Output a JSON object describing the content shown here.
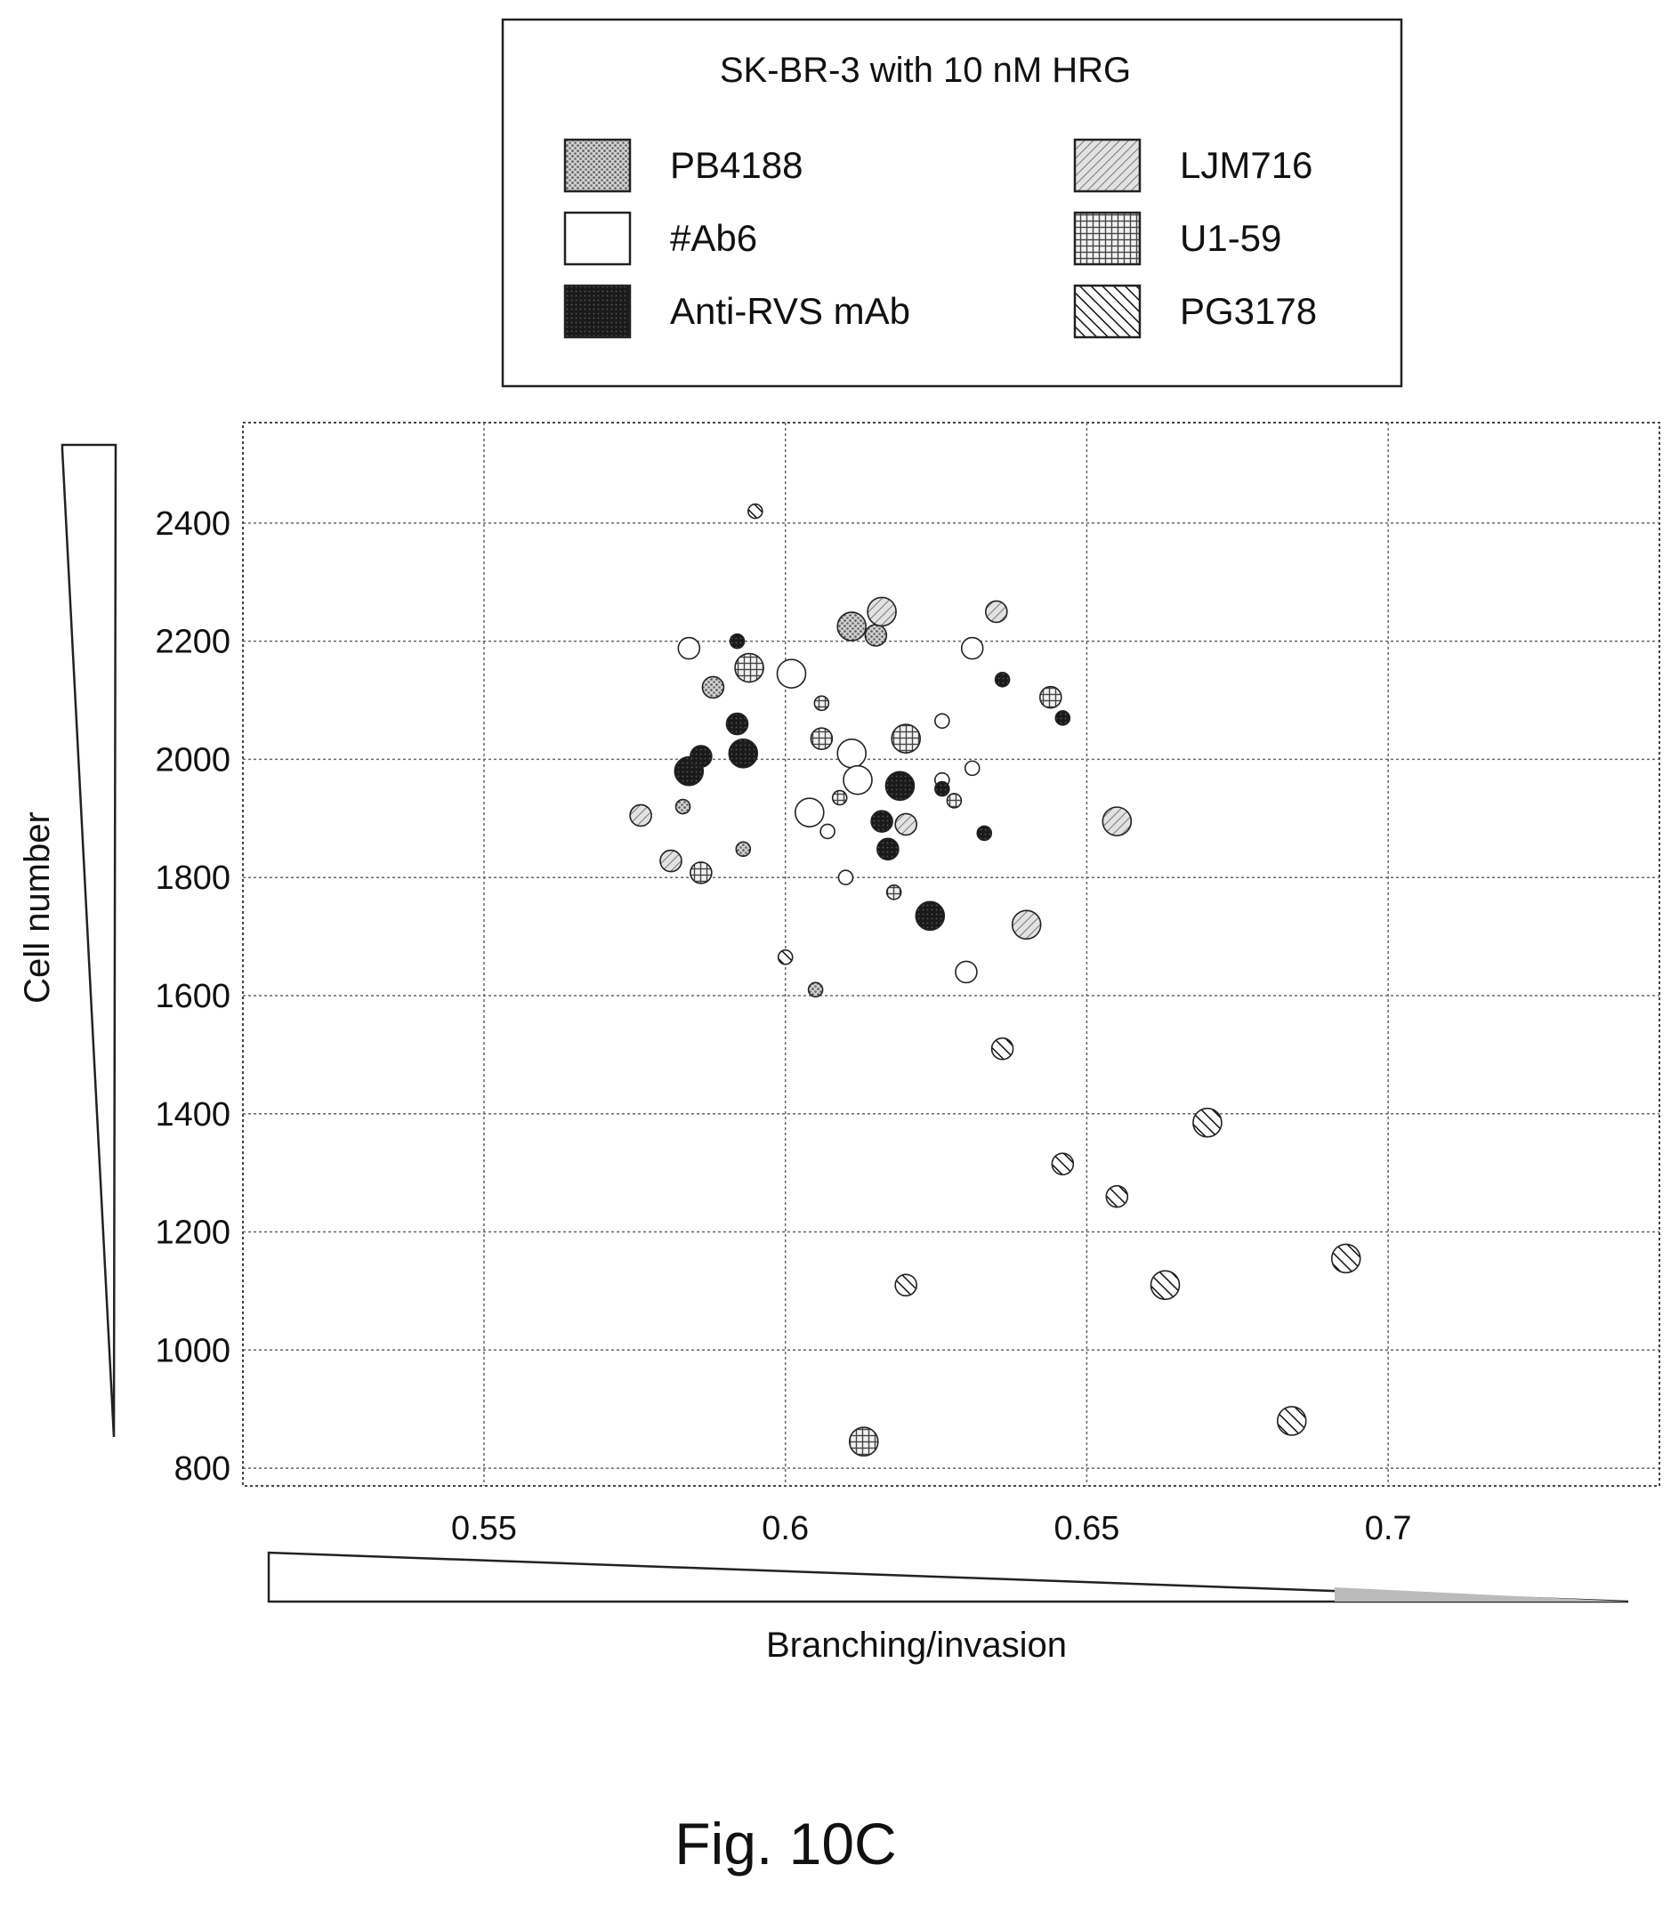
{
  "figure_label": "Fig. 10C",
  "chart_data": {
    "type": "scatter",
    "xlabel": "Branching/invasion",
    "ylabel": "Cell number",
    "xlim": [
      0.51,
      0.745
    ],
    "ylim": [
      770,
      2570
    ],
    "xticks": [
      0.55,
      0.6,
      0.65,
      0.7
    ],
    "yticks": [
      800,
      1000,
      1200,
      1400,
      1600,
      1800,
      2000,
      2200,
      2400
    ],
    "grid": true,
    "legend": {
      "title": "SK-BR-3 with 10 nM HRG",
      "placement": "top-center",
      "entries": [
        {
          "name": "PB4188",
          "pattern": "dots"
        },
        {
          "name": "#Ab6",
          "pattern": "open"
        },
        {
          "name": "Anti-RVS mAb",
          "pattern": "dark"
        },
        {
          "name": "LJM716",
          "pattern": "diagonal"
        },
        {
          "name": "U1-59",
          "pattern": "crosshatch"
        },
        {
          "name": "PG3178",
          "pattern": "back-diagonal"
        }
      ]
    },
    "series": [
      {
        "name": "PB4188",
        "pattern": "dots",
        "points": [
          {
            "x": 0.611,
            "y": 2225,
            "size": 3
          },
          {
            "x": 0.615,
            "y": 2210,
            "size": 2
          },
          {
            "x": 0.583,
            "y": 1920,
            "size": 1
          },
          {
            "x": 0.605,
            "y": 1610,
            "size": 1
          },
          {
            "x": 0.593,
            "y": 1848,
            "size": 1
          },
          {
            "x": 0.588,
            "y": 2122,
            "size": 2
          }
        ]
      },
      {
        "name": "#Ab6",
        "pattern": "open",
        "points": [
          {
            "x": 0.601,
            "y": 2145,
            "size": 3
          },
          {
            "x": 0.584,
            "y": 2188,
            "size": 2
          },
          {
            "x": 0.611,
            "y": 2010,
            "size": 3
          },
          {
            "x": 0.612,
            "y": 1965,
            "size": 3
          },
          {
            "x": 0.604,
            "y": 1910,
            "size": 3
          },
          {
            "x": 0.631,
            "y": 2188,
            "size": 2
          },
          {
            "x": 0.61,
            "y": 1800,
            "size": 1
          },
          {
            "x": 0.63,
            "y": 1640,
            "size": 2
          },
          {
            "x": 0.626,
            "y": 1965,
            "size": 1
          },
          {
            "x": 0.626,
            "y": 2065,
            "size": 1
          },
          {
            "x": 0.631,
            "y": 1985,
            "size": 1
          },
          {
            "x": 0.607,
            "y": 1878,
            "size": 1
          }
        ]
      },
      {
        "name": "Anti-RVS mAb",
        "pattern": "dark",
        "points": [
          {
            "x": 0.584,
            "y": 1980,
            "size": 3
          },
          {
            "x": 0.586,
            "y": 2005,
            "size": 2
          },
          {
            "x": 0.593,
            "y": 2010,
            "size": 3
          },
          {
            "x": 0.592,
            "y": 2060,
            "size": 2
          },
          {
            "x": 0.592,
            "y": 2200,
            "size": 1
          },
          {
            "x": 0.619,
            "y": 1955,
            "size": 3
          },
          {
            "x": 0.616,
            "y": 1895,
            "size": 2
          },
          {
            "x": 0.617,
            "y": 1848,
            "size": 2
          },
          {
            "x": 0.624,
            "y": 1735,
            "size": 3
          },
          {
            "x": 0.626,
            "y": 1950,
            "size": 1
          },
          {
            "x": 0.633,
            "y": 1875,
            "size": 1
          },
          {
            "x": 0.636,
            "y": 2135,
            "size": 1
          },
          {
            "x": 0.646,
            "y": 2070,
            "size": 1
          }
        ]
      },
      {
        "name": "LJM716",
        "pattern": "diagonal",
        "points": [
          {
            "x": 0.576,
            "y": 1905,
            "size": 2
          },
          {
            "x": 0.581,
            "y": 1828,
            "size": 2
          },
          {
            "x": 0.616,
            "y": 2250,
            "size": 3
          },
          {
            "x": 0.635,
            "y": 2250,
            "size": 2
          },
          {
            "x": 0.62,
            "y": 1890,
            "size": 2
          },
          {
            "x": 0.64,
            "y": 1720,
            "size": 3
          },
          {
            "x": 0.655,
            "y": 1895,
            "size": 3
          }
        ]
      },
      {
        "name": "U1-59",
        "pattern": "crosshatch",
        "points": [
          {
            "x": 0.594,
            "y": 2155,
            "size": 3
          },
          {
            "x": 0.586,
            "y": 1808,
            "size": 2
          },
          {
            "x": 0.606,
            "y": 2035,
            "size": 2
          },
          {
            "x": 0.606,
            "y": 2095,
            "size": 1
          },
          {
            "x": 0.62,
            "y": 2035,
            "size": 3
          },
          {
            "x": 0.618,
            "y": 1775,
            "size": 1
          },
          {
            "x": 0.644,
            "y": 2105,
            "size": 2
          },
          {
            "x": 0.613,
            "y": 845,
            "size": 3
          },
          {
            "x": 0.609,
            "y": 1935,
            "size": 1
          },
          {
            "x": 0.628,
            "y": 1930,
            "size": 1
          }
        ]
      },
      {
        "name": "PG3178",
        "pattern": "back-diagonal",
        "points": [
          {
            "x": 0.595,
            "y": 2420,
            "size": 1
          },
          {
            "x": 0.6,
            "y": 1665,
            "size": 1
          },
          {
            "x": 0.636,
            "y": 1510,
            "size": 2
          },
          {
            "x": 0.67,
            "y": 1385,
            "size": 3
          },
          {
            "x": 0.646,
            "y": 1315,
            "size": 2
          },
          {
            "x": 0.655,
            "y": 1260,
            "size": 2
          },
          {
            "x": 0.663,
            "y": 1110,
            "size": 3
          },
          {
            "x": 0.62,
            "y": 1110,
            "size": 2
          },
          {
            "x": 0.693,
            "y": 1155,
            "size": 3
          },
          {
            "x": 0.684,
            "y": 880,
            "size": 3
          }
        ]
      }
    ]
  }
}
